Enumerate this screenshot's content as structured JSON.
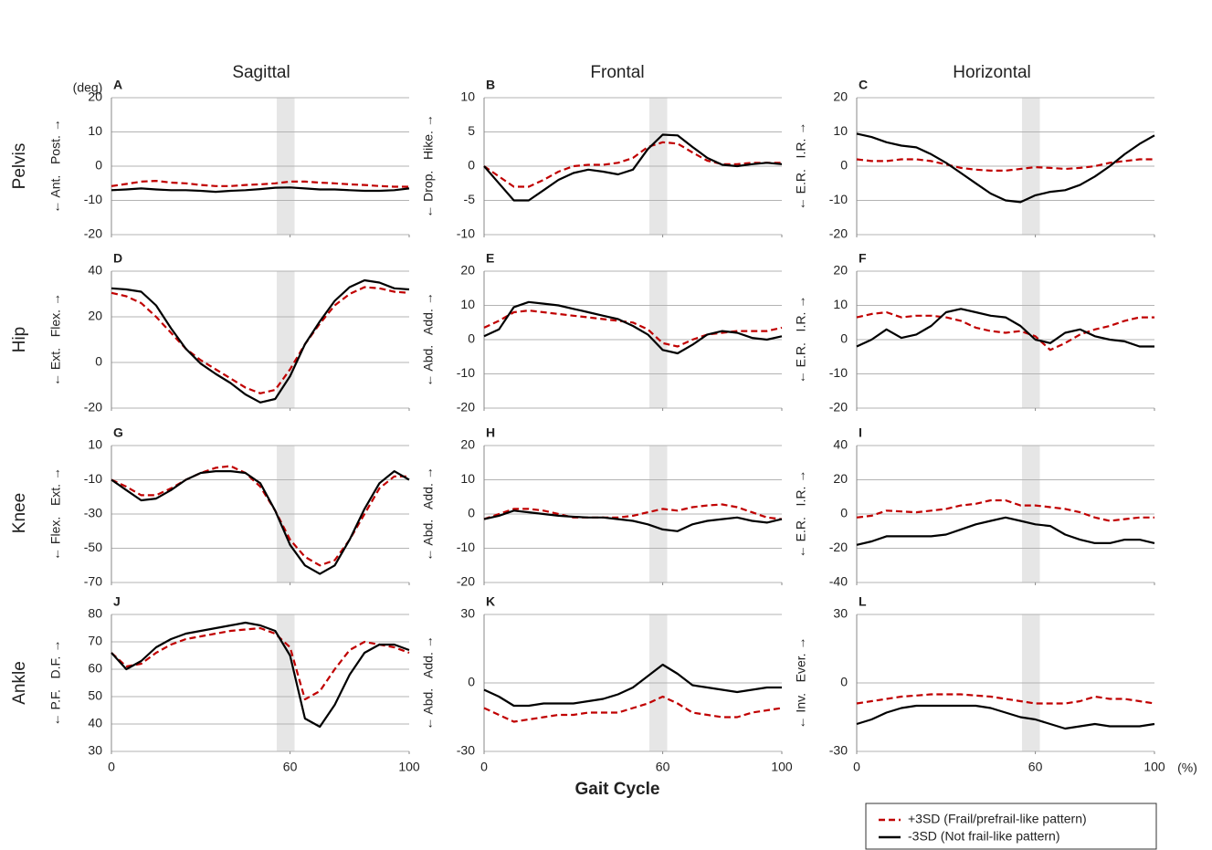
{
  "columns": [
    "Sagittal",
    "Frontal",
    "Horizontal"
  ],
  "rows": [
    "Pelvis",
    "Hip",
    "Knee",
    "Ankle"
  ],
  "unit_label": "(deg)",
  "xlabel": "Gait Cycle",
  "x_unit": "(%)",
  "legend": [
    {
      "name": "+3SD (Frail/prefrail-like pattern)",
      "color": "#c00000",
      "dashed": true
    },
    {
      "name": "-3SD (Not frail-like pattern)",
      "color": "#000000",
      "dashed": false
    }
  ],
  "chart_data": [
    {
      "type": "line",
      "panel": "A",
      "ylabel": "← Ant.   Post. →",
      "xlim": [
        0,
        100
      ],
      "xticks": [
        0,
        60,
        100
      ],
      "ylim": [
        -20,
        20
      ],
      "yticks": [
        -20,
        -10,
        0,
        10,
        20
      ],
      "grid": true,
      "shade": [
        55.5,
        61.5
      ],
      "x": [
        0,
        5,
        10,
        15,
        20,
        25,
        30,
        35,
        40,
        45,
        50,
        55,
        60,
        65,
        70,
        75,
        80,
        85,
        90,
        95,
        100
      ],
      "series": [
        {
          "values": [
            -5.8,
            -5.2,
            -4.5,
            -4.3,
            -4.8,
            -5,
            -5.5,
            -5.8,
            -5.8,
            -5.5,
            -5.3,
            -5,
            -4.5,
            -4.5,
            -4.8,
            -5,
            -5.3,
            -5.5,
            -5.8,
            -6,
            -6
          ]
        },
        {
          "values": [
            -7,
            -6.8,
            -6.5,
            -6.8,
            -7,
            -7,
            -7.2,
            -7.5,
            -7.2,
            -7,
            -6.7,
            -6.3,
            -6.2,
            -6.5,
            -6.8,
            -6.8,
            -7,
            -7.2,
            -7.2,
            -7,
            -6.5
          ]
        }
      ]
    },
    {
      "type": "line",
      "panel": "B",
      "ylabel": "← Drop.   Hike. →",
      "xlim": [
        0,
        100
      ],
      "xticks": [
        0,
        60,
        100
      ],
      "ylim": [
        -10,
        10
      ],
      "yticks": [
        -10,
        -5,
        0,
        5,
        10
      ],
      "grid": true,
      "shade": [
        55.5,
        61.5
      ],
      "x": [
        0,
        5,
        10,
        15,
        20,
        25,
        30,
        35,
        40,
        45,
        50,
        55,
        60,
        65,
        70,
        75,
        80,
        85,
        90,
        95,
        100
      ],
      "series": [
        {
          "values": [
            0,
            -1.5,
            -3,
            -3,
            -2,
            -0.8,
            0,
            0.2,
            0.2,
            0.5,
            1.2,
            2.8,
            3.5,
            3.3,
            2,
            0.8,
            0.3,
            0.3,
            0.5,
            0.5,
            0.5
          ]
        },
        {
          "values": [
            0,
            -2.5,
            -5,
            -5,
            -3.5,
            -2,
            -1,
            -0.5,
            -0.8,
            -1.2,
            -0.5,
            2.5,
            4.6,
            4.5,
            2.8,
            1.2,
            0.2,
            0,
            0.3,
            0.5,
            0.3
          ]
        }
      ]
    },
    {
      "type": "line",
      "panel": "C",
      "ylabel": "← E.R.   I.R. →",
      "xlim": [
        0,
        100
      ],
      "xticks": [
        0,
        60,
        100
      ],
      "ylim": [
        -20,
        20
      ],
      "yticks": [
        -20,
        -10,
        0,
        10,
        20
      ],
      "grid": true,
      "shade": [
        55.5,
        61.5
      ],
      "x": [
        0,
        5,
        10,
        15,
        20,
        25,
        30,
        35,
        40,
        45,
        50,
        55,
        60,
        65,
        70,
        75,
        80,
        85,
        90,
        95,
        100
      ],
      "series": [
        {
          "values": [
            2,
            1.5,
            1.5,
            2,
            2,
            1.5,
            0.5,
            -0.5,
            -1,
            -1.3,
            -1.3,
            -0.8,
            -0.3,
            -0.5,
            -0.8,
            -0.5,
            0,
            1,
            1.5,
            2,
            2
          ]
        },
        {
          "values": [
            9.5,
            8.5,
            7,
            6,
            5.5,
            3.5,
            1,
            -2,
            -5,
            -8,
            -10,
            -10.5,
            -8.5,
            -7.5,
            -7,
            -5.5,
            -3,
            0,
            3.5,
            6.5,
            9
          ]
        }
      ]
    },
    {
      "type": "line",
      "panel": "D",
      "ylabel": "← Ext.   Flex. →",
      "xlim": [
        0,
        100
      ],
      "xticks": [
        0,
        60,
        100
      ],
      "ylim": [
        -20,
        40
      ],
      "yticks": [
        -20,
        0,
        20,
        40
      ],
      "grid": true,
      "shade": [
        55.5,
        61.5
      ],
      "x": [
        0,
        5,
        10,
        15,
        20,
        25,
        30,
        35,
        40,
        45,
        50,
        55,
        60,
        65,
        70,
        75,
        80,
        85,
        90,
        95,
        100
      ],
      "series": [
        {
          "values": [
            30.5,
            29,
            26,
            20,
            13,
            6,
            1,
            -3,
            -7,
            -11,
            -13.5,
            -12,
            -3,
            8,
            17,
            25,
            30,
            33,
            32.5,
            31,
            30.5
          ]
        },
        {
          "values": [
            32.5,
            32,
            31,
            25,
            15,
            6,
            -0.5,
            -5,
            -9,
            -14,
            -17.5,
            -16,
            -6,
            8,
            18,
            27,
            33,
            36,
            35,
            32.5,
            32
          ]
        }
      ]
    },
    {
      "type": "line",
      "panel": "E",
      "ylabel": "← Abd.   Add. →",
      "xlim": [
        0,
        100
      ],
      "xticks": [
        0,
        60,
        100
      ],
      "ylim": [
        -20,
        20
      ],
      "yticks": [
        -20,
        -10,
        0,
        10,
        20
      ],
      "grid": true,
      "shade": [
        55.5,
        61.5
      ],
      "x": [
        0,
        5,
        10,
        15,
        20,
        25,
        30,
        35,
        40,
        45,
        50,
        55,
        60,
        65,
        70,
        75,
        80,
        85,
        90,
        95,
        100
      ],
      "series": [
        {
          "values": [
            3.5,
            5.5,
            8,
            8.5,
            8,
            7.5,
            7,
            6.5,
            6,
            5.5,
            5,
            3,
            -1,
            -2,
            0,
            1.5,
            2,
            2.5,
            2.5,
            2.5,
            3.5
          ]
        },
        {
          "values": [
            1,
            3,
            9.5,
            11,
            10.5,
            10,
            9,
            8,
            7,
            6,
            4,
            1.5,
            -3,
            -4,
            -1.5,
            1.5,
            2.5,
            2,
            0.5,
            0,
            1
          ]
        }
      ]
    },
    {
      "type": "line",
      "panel": "F",
      "ylabel": "← E.R.   I.R. →",
      "xlim": [
        0,
        100
      ],
      "xticks": [
        0,
        60,
        100
      ],
      "ylim": [
        -20,
        20
      ],
      "yticks": [
        -20,
        -10,
        0,
        10,
        20
      ],
      "grid": true,
      "shade": [
        55.5,
        61.5
      ],
      "x": [
        0,
        5,
        10,
        15,
        20,
        25,
        30,
        35,
        40,
        45,
        50,
        55,
        60,
        65,
        70,
        75,
        80,
        85,
        90,
        95,
        100
      ],
      "series": [
        {
          "values": [
            6.5,
            7.5,
            8,
            6.5,
            7,
            7,
            6.5,
            5.5,
            3.5,
            2.5,
            2,
            2.5,
            1,
            -3,
            -1,
            1.5,
            3,
            4,
            5.5,
            6.5,
            6.5
          ]
        },
        {
          "values": [
            -2,
            0,
            3,
            0.5,
            1.5,
            4,
            8,
            9,
            8,
            7,
            6.5,
            4,
            0,
            -1,
            2,
            3,
            1,
            0,
            -0.5,
            -2,
            -2
          ]
        }
      ]
    },
    {
      "type": "line",
      "panel": "G",
      "ylabel": "← Flex.   Ext. →",
      "xlim": [
        0,
        100
      ],
      "xticks": [
        0,
        60,
        100
      ],
      "ylim": [
        -70,
        10
      ],
      "yticks": [
        -70,
        -50,
        -30,
        -10,
        10
      ],
      "grid": true,
      "shade": [
        55.5,
        61.5
      ],
      "x": [
        0,
        5,
        10,
        15,
        20,
        25,
        30,
        35,
        40,
        45,
        50,
        55,
        60,
        65,
        70,
        75,
        80,
        85,
        90,
        95,
        100
      ],
      "series": [
        {
          "values": [
            -10,
            -14,
            -19,
            -19,
            -15,
            -10,
            -6,
            -3,
            -2,
            -6,
            -14,
            -28,
            -45,
            -55,
            -60,
            -57,
            -45,
            -30,
            -15,
            -8,
            -8
          ]
        },
        {
          "values": [
            -10,
            -16,
            -22,
            -21,
            -16,
            -10,
            -6,
            -5,
            -5,
            -6,
            -12,
            -28,
            -48,
            -60,
            -65,
            -60,
            -45,
            -27,
            -12,
            -5,
            -10
          ]
        }
      ]
    },
    {
      "type": "line",
      "panel": "H",
      "ylabel": "← Abd.   Add. →",
      "xlim": [
        0,
        100
      ],
      "xticks": [
        0,
        60,
        100
      ],
      "ylim": [
        -20,
        20
      ],
      "yticks": [
        -20,
        -10,
        0,
        10,
        20
      ],
      "grid": true,
      "shade": [
        55.5,
        61.5
      ],
      "x": [
        0,
        5,
        10,
        15,
        20,
        25,
        30,
        35,
        40,
        45,
        50,
        55,
        60,
        65,
        70,
        75,
        80,
        85,
        90,
        95,
        100
      ],
      "series": [
        {
          "values": [
            -1.5,
            0,
            1.5,
            1.5,
            1,
            0,
            -1,
            -1,
            -1,
            -1,
            -0.5,
            0.5,
            1.5,
            1,
            2,
            2.5,
            2.8,
            2,
            0.5,
            -1,
            -1.5
          ]
        },
        {
          "values": [
            -1.5,
            -0.5,
            1,
            0.5,
            0,
            -0.5,
            -0.8,
            -1,
            -1,
            -1.5,
            -2,
            -3,
            -4.5,
            -5,
            -3,
            -2,
            -1.5,
            -1,
            -2,
            -2.5,
            -1.5
          ]
        }
      ]
    },
    {
      "type": "line",
      "panel": "I",
      "ylabel": "← E.R.   I.R. →",
      "xlim": [
        0,
        100
      ],
      "xticks": [
        0,
        60,
        100
      ],
      "ylim": [
        -40,
        40
      ],
      "yticks": [
        -40,
        -20,
        0,
        20,
        40
      ],
      "grid": true,
      "shade": [
        55.5,
        61.5
      ],
      "x": [
        0,
        5,
        10,
        15,
        20,
        25,
        30,
        35,
        40,
        45,
        50,
        55,
        60,
        65,
        70,
        75,
        80,
        85,
        90,
        95,
        100
      ],
      "series": [
        {
          "values": [
            -2,
            -1,
            2,
            1.5,
            1,
            2,
            3,
            5,
            6,
            8,
            8,
            5,
            5,
            4,
            3,
            1,
            -2,
            -4,
            -3,
            -2,
            -2
          ]
        },
        {
          "values": [
            -18,
            -16,
            -13,
            -13,
            -13,
            -13,
            -12,
            -9,
            -6,
            -4,
            -2,
            -4,
            -6,
            -7,
            -12,
            -15,
            -17,
            -17,
            -15,
            -15,
            -17
          ]
        }
      ]
    },
    {
      "type": "line",
      "panel": "J",
      "ylabel": "← P.F.   D.F. →",
      "xlim": [
        0,
        100
      ],
      "xticks": [
        0,
        60,
        100
      ],
      "ylim": [
        30,
        80
      ],
      "yticks": [
        30,
        40,
        50,
        60,
        70,
        80
      ],
      "grid": true,
      "shade": [
        55.5,
        61.5
      ],
      "x": [
        0,
        5,
        10,
        15,
        20,
        25,
        30,
        35,
        40,
        45,
        50,
        55,
        60,
        65,
        70,
        75,
        80,
        85,
        90,
        95,
        100
      ],
      "series": [
        {
          "values": [
            66,
            61,
            62,
            66,
            69,
            71,
            72,
            73,
            74,
            74.5,
            75,
            73,
            68,
            49,
            52,
            60,
            67,
            70,
            69,
            68,
            66
          ]
        },
        {
          "values": [
            66,
            60,
            63,
            68,
            71,
            73,
            74,
            75,
            76,
            77,
            76,
            74,
            65,
            42,
            39,
            47,
            58,
            66,
            69,
            69,
            67
          ]
        }
      ]
    },
    {
      "type": "line",
      "panel": "K",
      "ylabel": "← Abd.   Add. →",
      "xlim": [
        0,
        100
      ],
      "xticks": [
        0,
        60,
        100
      ],
      "ylim": [
        -30,
        30
      ],
      "yticks": [
        -30,
        0,
        30
      ],
      "grid": true,
      "shade": [
        55.5,
        61.5
      ],
      "x": [
        0,
        5,
        10,
        15,
        20,
        25,
        30,
        35,
        40,
        45,
        50,
        55,
        60,
        65,
        70,
        75,
        80,
        85,
        90,
        95,
        100
      ],
      "series": [
        {
          "values": [
            -11,
            -14,
            -17,
            -16,
            -15,
            -14,
            -14,
            -13,
            -13,
            -13,
            -11,
            -9,
            -6,
            -9,
            -13,
            -14,
            -15,
            -15,
            -13,
            -12,
            -11
          ]
        },
        {
          "values": [
            -3,
            -6,
            -10,
            -10,
            -9,
            -9,
            -9,
            -8,
            -7,
            -5,
            -2,
            3,
            8,
            4,
            -1,
            -2,
            -3,
            -4,
            -3,
            -2,
            -2
          ]
        }
      ]
    },
    {
      "type": "line",
      "panel": "L",
      "ylabel": "← Inv.   Ever. →",
      "xlim": [
        0,
        100
      ],
      "xticks": [
        0,
        60,
        100
      ],
      "ylim": [
        -30,
        30
      ],
      "yticks": [
        -30,
        0,
        30
      ],
      "grid": true,
      "shade": [
        55.5,
        61.5
      ],
      "x": [
        0,
        5,
        10,
        15,
        20,
        25,
        30,
        35,
        40,
        45,
        50,
        55,
        60,
        65,
        70,
        75,
        80,
        85,
        90,
        95,
        100
      ],
      "series": [
        {
          "values": [
            -9,
            -8,
            -7,
            -6,
            -5.5,
            -5,
            -5,
            -5,
            -5.5,
            -6,
            -7,
            -8,
            -9,
            -9,
            -9,
            -8,
            -6,
            -7,
            -7,
            -8,
            -9
          ]
        },
        {
          "values": [
            -18,
            -16,
            -13,
            -11,
            -10,
            -10,
            -10,
            -10,
            -10,
            -11,
            -13,
            -15,
            -16,
            -18,
            -20,
            -19,
            -18,
            -19,
            -19,
            -19,
            -18
          ]
        }
      ]
    }
  ]
}
